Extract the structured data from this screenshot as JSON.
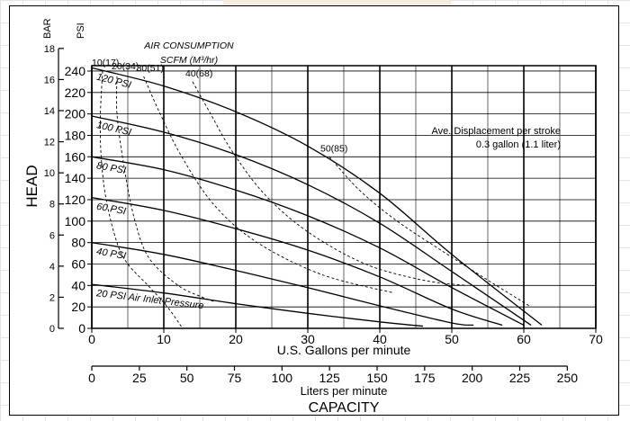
{
  "chart_data": {
    "type": "line",
    "title": "",
    "xlabel": "U.S. Gallons per minute",
    "x2label": "Liters per minute",
    "capacity_label": "CAPACITY",
    "ylabel": "HEAD",
    "bar_label": "BAR",
    "psi_label": "PSI",
    "x_ticks": [
      "0",
      "10",
      "20",
      "30",
      "40",
      "50",
      "60",
      "70"
    ],
    "x_lim": [
      0,
      70
    ],
    "x2_ticks": [
      "0",
      "25",
      "50",
      "75",
      "100",
      "125",
      "150",
      "175",
      "200",
      "225",
      "250"
    ],
    "psi_ticks": [
      "0",
      "20",
      "40",
      "60",
      "80",
      "100",
      "120",
      "140",
      "160",
      "180",
      "200",
      "220",
      "240"
    ],
    "psi_lim": [
      0,
      245
    ],
    "bar_ticks": [
      "0",
      "2",
      "4",
      "6",
      "8",
      "10",
      "12",
      "14",
      "16",
      "18"
    ],
    "grid": true,
    "air_consumption_title": "AIR CONSUMPTION",
    "air_consumption_unit": "SCFM (M³/hr)",
    "displacement_note_line1": "Ave. Displacement per stroke",
    "displacement_note_line2": "0.3 gallon (1.1 liter)",
    "series": [
      {
        "name": "120 PSI",
        "x": [
          0,
          10,
          20,
          30,
          40,
          50,
          62.5
        ],
        "y": [
          243,
          226,
          202,
          170,
          126,
          69,
          3
        ]
      },
      {
        "name": "100 PSI",
        "x": [
          0,
          10,
          20,
          30,
          40,
          50,
          61
        ],
        "y": [
          198,
          183,
          162,
          134,
          98,
          53,
          3
        ]
      },
      {
        "name": "80 PSI",
        "x": [
          0,
          10,
          20,
          30,
          40,
          50,
          60
        ],
        "y": [
          160,
          148,
          129,
          105,
          75,
          38,
          3
        ]
      },
      {
        "name": "60 PSI",
        "x": [
          0,
          10,
          20,
          30,
          40,
          50,
          57
        ],
        "y": [
          122,
          110,
          93,
          73,
          48,
          18,
          3
        ]
      },
      {
        "name": "40 PSI",
        "x": [
          0,
          10,
          20,
          30,
          40,
          50,
          53
        ],
        "y": [
          80,
          69,
          54,
          38,
          21,
          5,
          3
        ]
      },
      {
        "name": "20 PSI Air Inlet Pressure",
        "x": [
          0,
          10,
          20,
          30,
          40,
          46
        ],
        "y": [
          41,
          33,
          23,
          14,
          6,
          2
        ]
      }
    ],
    "air_consumption_curves": [
      {
        "label": "10(17)",
        "x": [
          1.5,
          1.2,
          1.3,
          2,
          3.5,
          5,
          7.8,
          10.5,
          12.5
        ],
        "y": [
          240,
          200,
          160,
          120,
          80,
          60,
          40,
          20,
          1
        ]
      },
      {
        "label": "20(34)",
        "x": [
          3.5,
          3.5,
          4.5,
          6,
          8,
          12,
          15,
          17
        ],
        "y": [
          235,
          200,
          150,
          100,
          65,
          40,
          30,
          25
        ]
      },
      {
        "label": "30(51)",
        "x": [
          7.2,
          9.5,
          12.5,
          17,
          23,
          32,
          42
        ],
        "y": [
          235,
          200,
          160,
          115,
          80,
          50,
          33
        ]
      },
      {
        "label": "40(68)",
        "x": [
          14,
          16.5,
          19.5,
          24,
          30,
          38,
          46,
          52
        ],
        "y": [
          230,
          200,
          165,
          125,
          90,
          60,
          45,
          40
        ]
      },
      {
        "label": "50(85)",
        "x": [
          33,
          37,
          42,
          48,
          55,
          61
        ],
        "y": [
          160,
          130,
          102,
          75,
          45,
          20
        ]
      }
    ]
  }
}
